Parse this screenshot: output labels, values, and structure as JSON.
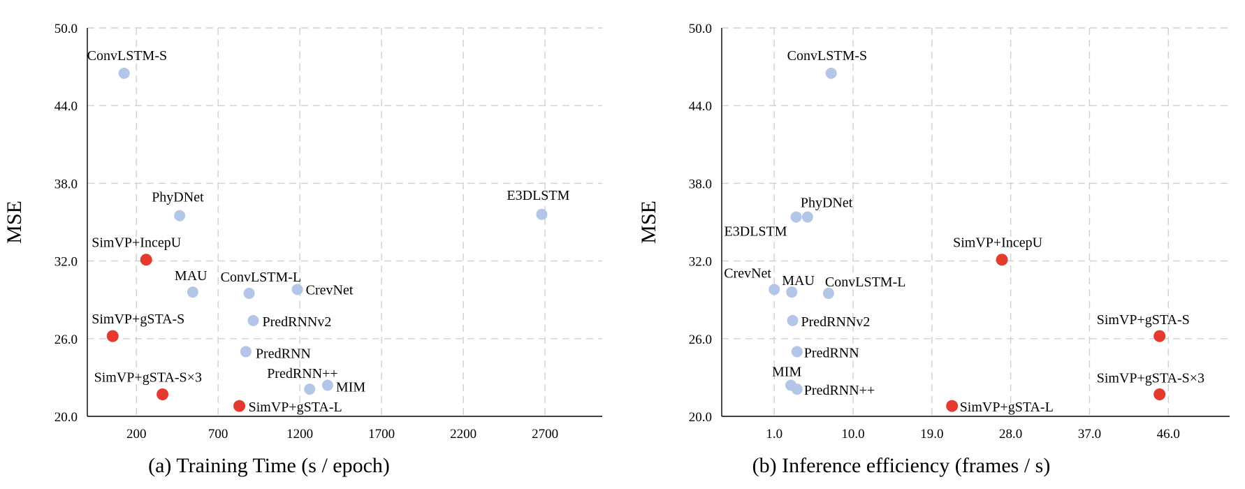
{
  "colors": {
    "light": "#b4c6e7",
    "highlight": "#e53a2e"
  },
  "chart_data": [
    {
      "type": "scatter",
      "xlabel": "(a) Training Time (s / epoch)",
      "ylabel": "MSE",
      "xlim": [
        -100,
        3050
      ],
      "ylim": [
        20.0,
        50.0
      ],
      "x_ticks": [
        "200",
        "700",
        "1200",
        "1700",
        "2200",
        "2700"
      ],
      "x_tick_values": [
        200,
        700,
        1200,
        1700,
        2200,
        2700
      ],
      "y_ticks": [
        "20.0",
        "26.0",
        "32.0",
        "38.0",
        "44.0",
        "50.0"
      ],
      "y_tick_values": [
        20,
        26,
        32,
        38,
        44,
        50
      ],
      "points": [
        {
          "name": "ConvLSTM-S",
          "x": 125,
          "y": 46.5,
          "highlight": false
        },
        {
          "name": "PhyDNet",
          "x": 465,
          "y": 35.5,
          "highlight": false
        },
        {
          "name": "E3DLSTM",
          "x": 2680,
          "y": 35.6,
          "highlight": false
        },
        {
          "name": "SimVP+IncepU",
          "x": 260,
          "y": 32.1,
          "highlight": true
        },
        {
          "name": "MAU",
          "x": 545,
          "y": 29.6,
          "highlight": false
        },
        {
          "name": "ConvLSTM-L",
          "x": 890,
          "y": 29.5,
          "highlight": false
        },
        {
          "name": "CrevNet",
          "x": 1185,
          "y": 29.8,
          "highlight": false
        },
        {
          "name": "PredRNNv2",
          "x": 915,
          "y": 27.4,
          "highlight": false
        },
        {
          "name": "SimVP+gSTA-S",
          "x": 55,
          "y": 26.2,
          "highlight": true
        },
        {
          "name": "PredRNN",
          "x": 870,
          "y": 25.0,
          "highlight": false
        },
        {
          "name": "PredRNN++",
          "x": 1260,
          "y": 22.1,
          "highlight": false
        },
        {
          "name": "MIM",
          "x": 1370,
          "y": 22.4,
          "highlight": false
        },
        {
          "name": "SimVP+gSTA-S×3",
          "x": 360,
          "y": 21.7,
          "highlight": true
        },
        {
          "name": "SimVP+gSTA-L",
          "x": 830,
          "y": 20.8,
          "highlight": true
        }
      ]
    },
    {
      "type": "scatter",
      "xlabel": "(b) Inference efficiency (frames / s)",
      "ylabel": "MSE",
      "xlim": [
        -5.0,
        53.0
      ],
      "ylim": [
        20.0,
        50.0
      ],
      "x_ticks": [
        "1.0",
        "10.0",
        "19.0",
        "28.0",
        "37.0",
        "46.0"
      ],
      "x_tick_values": [
        1,
        10,
        19,
        28,
        37,
        46
      ],
      "y_ticks": [
        "20.0",
        "26.0",
        "32.0",
        "38.0",
        "44.0",
        "50.0"
      ],
      "y_tick_values": [
        20,
        26,
        32,
        38,
        44,
        50
      ],
      "points": [
        {
          "name": "ConvLSTM-S",
          "x": 7.5,
          "y": 46.5,
          "highlight": false
        },
        {
          "name": "PhyDNet",
          "x": 4.8,
          "y": 35.4,
          "highlight": false
        },
        {
          "name": "E3DLSTM",
          "x": 3.5,
          "y": 35.4,
          "highlight": false
        },
        {
          "name": "SimVP+IncepU",
          "x": 27.0,
          "y": 32.1,
          "highlight": true
        },
        {
          "name": "CrevNet",
          "x": 1.0,
          "y": 29.8,
          "highlight": false
        },
        {
          "name": "MAU",
          "x": 3.0,
          "y": 29.6,
          "highlight": false
        },
        {
          "name": "ConvLSTM-L",
          "x": 7.2,
          "y": 29.5,
          "highlight": false
        },
        {
          "name": "PredRNNv2",
          "x": 3.1,
          "y": 27.4,
          "highlight": false
        },
        {
          "name": "SimVP+gSTA-S",
          "x": 45.0,
          "y": 26.2,
          "highlight": true
        },
        {
          "name": "PredRNN",
          "x": 3.6,
          "y": 25.0,
          "highlight": false
        },
        {
          "name": "MIM",
          "x": 2.9,
          "y": 22.4,
          "highlight": false
        },
        {
          "name": "PredRNN++",
          "x": 3.6,
          "y": 22.1,
          "highlight": false
        },
        {
          "name": "SimVP+gSTA-S×3",
          "x": 45.0,
          "y": 21.7,
          "highlight": true
        },
        {
          "name": "SimVP+gSTA-L",
          "x": 21.3,
          "y": 20.8,
          "highlight": true
        }
      ]
    }
  ]
}
